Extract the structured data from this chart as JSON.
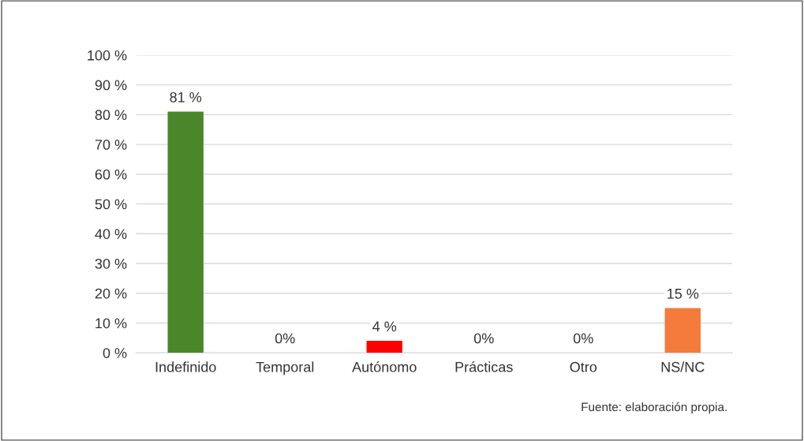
{
  "chart_data": {
    "type": "bar",
    "categories": [
      "Indefinido",
      "Temporal",
      "Autónomo",
      "Prácticas",
      "Otro",
      "NS/NC"
    ],
    "values": [
      81,
      0,
      4,
      0,
      0,
      15
    ],
    "colors": [
      "#4a862a",
      "#4a862a",
      "#ff0000",
      "#4a862a",
      "#4a862a",
      "#f47b3b"
    ],
    "value_labels": [
      "81 %",
      "0%",
      "4 %",
      "0%",
      "0%",
      "15 %"
    ],
    "ylim": [
      0,
      100
    ],
    "yticks": [
      {
        "value": 0,
        "label": "0 %"
      },
      {
        "value": 10,
        "label": "10 %"
      },
      {
        "value": 20,
        "label": "20 %"
      },
      {
        "value": 30,
        "label": "30 %"
      },
      {
        "value": 40,
        "label": "40 %"
      },
      {
        "value": 50,
        "label": "50 %"
      },
      {
        "value": 60,
        "label": "60 %"
      },
      {
        "value": 70,
        "label": "70 %"
      },
      {
        "value": 80,
        "label": "80 %"
      },
      {
        "value": 90,
        "label": "90 %"
      },
      {
        "value": 100,
        "label": "100 %"
      }
    ],
    "grid": "y",
    "annotations": [
      "Fuente: elaboración propia."
    ]
  }
}
